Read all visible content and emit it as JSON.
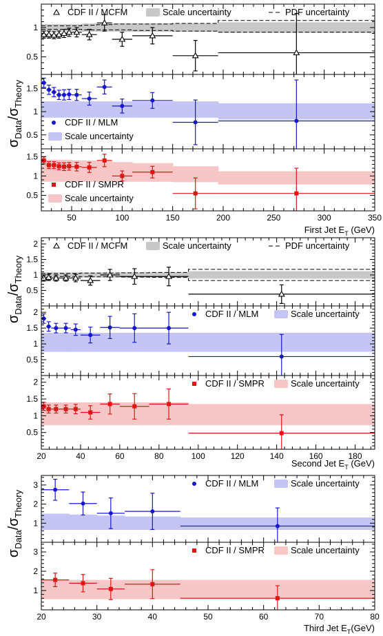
{
  "figure": {
    "ylabel_main": "σ",
    "ylabel_sub1": "Data",
    "ylabel_sep": "/σ",
    "ylabel_sub2": "Theory",
    "colors": {
      "mcfm": "#000000",
      "mlm": "#1515d0",
      "smpr": "#e11414",
      "scale_mcfm": "#c8c8c8",
      "scale_mlm": "#c4c4f5",
      "scale_smpr": "#f7c6c6"
    }
  },
  "chart_data": [
    {
      "id": "first-jet",
      "type": "scatter",
      "xlabel_main": "First Jet E",
      "xlabel_sub": "T",
      "xlabel_unit": " (GeV)",
      "xlim": [
        20,
        350
      ],
      "xticks": [
        50,
        100,
        150,
        200,
        250,
        300,
        350
      ],
      "bins": [
        [
          20,
          25
        ],
        [
          25,
          30
        ],
        [
          30,
          35
        ],
        [
          35,
          40
        ],
        [
          40,
          45
        ],
        [
          45,
          50
        ],
        [
          50,
          60
        ],
        [
          60,
          75
        ],
        [
          75,
          90
        ],
        [
          90,
          110
        ],
        [
          110,
          150
        ],
        [
          150,
          195
        ],
        [
          195,
          350
        ]
      ],
      "x": [
        22.5,
        27.5,
        32.5,
        37.5,
        42.5,
        47.5,
        55,
        67.5,
        82.5,
        100,
        130,
        172.5,
        272.5
      ],
      "panels": [
        {
          "id": "mcfm",
          "ylim": [
            0.2,
            1.4
          ],
          "yticks": [
            0.5,
            1
          ],
          "legend": [
            {
              "marker": "triangle",
              "label": "CDF II / MCFM"
            },
            {
              "marker": "band-grey",
              "label": "Scale uncertainty"
            },
            {
              "marker": "dash",
              "label": "PDF uncertainty"
            }
          ],
          "legend_layout": "top-row",
          "series_name": "CDF II / MCFM",
          "marker": "triangle",
          "color_key": "mcfm",
          "y": [
            0.88,
            0.88,
            0.87,
            0.88,
            0.9,
            0.92,
            0.92,
            0.88,
            1.08,
            0.8,
            0.86,
            0.52,
            0.57
          ],
          "yerr": [
            0.06,
            0.06,
            0.06,
            0.06,
            0.07,
            0.07,
            0.08,
            0.09,
            0.14,
            0.12,
            0.14,
            0.26,
            0.67
          ],
          "band_color_key": "scale_mcfm",
          "band": [
            [
              0.94,
              1.06
            ],
            [
              0.94,
              1.06
            ],
            [
              0.94,
              1.06
            ],
            [
              0.94,
              1.06
            ],
            [
              0.94,
              1.06
            ],
            [
              0.94,
              1.06
            ],
            [
              0.94,
              1.06
            ],
            [
              0.93,
              1.07
            ],
            [
              0.93,
              1.07
            ],
            [
              0.93,
              1.07
            ],
            [
              0.93,
              1.07
            ],
            [
              0.93,
              1.07
            ],
            [
              0.91,
              1.09
            ]
          ],
          "pdf_lo": [
            0.97,
            0.97,
            0.97,
            0.97,
            0.97,
            0.97,
            0.97,
            0.96,
            0.96,
            0.96,
            0.95,
            0.94,
            0.92
          ],
          "pdf_hi": [
            1.03,
            1.03,
            1.03,
            1.03,
            1.03,
            1.03,
            1.03,
            1.04,
            1.05,
            1.06,
            1.06,
            1.07,
            1.12
          ]
        },
        {
          "id": "mlm",
          "ylim": [
            0.2,
            1.8
          ],
          "yticks": [
            0.5,
            1,
            1.5
          ],
          "legend": [
            {
              "marker": "dot",
              "label": "CDF II / MLM"
            },
            {
              "marker": "band",
              "label": "Scale uncertainty"
            }
          ],
          "legend_layout": "lower-left",
          "series_name": "CDF II / MLM",
          "marker": "dot",
          "color_key": "mlm",
          "y": [
            1.62,
            1.47,
            1.42,
            1.36,
            1.36,
            1.37,
            1.36,
            1.28,
            1.53,
            1.12,
            1.24,
            0.77,
            0.8
          ],
          "yerr": [
            0.1,
            0.1,
            0.1,
            0.1,
            0.11,
            0.11,
            0.12,
            0.14,
            0.15,
            0.15,
            0.17,
            0.48,
            0.88
          ],
          "band_color_key": "scale_mlm",
          "band": [
            [
              0.87,
              1.22
            ],
            [
              0.87,
              1.22
            ],
            [
              0.87,
              1.22
            ],
            [
              0.87,
              1.22
            ],
            [
              0.87,
              1.22
            ],
            [
              0.87,
              1.22
            ],
            [
              0.87,
              1.22
            ],
            [
              0.87,
              1.22
            ],
            [
              0.87,
              1.22
            ],
            [
              0.87,
              1.22
            ],
            [
              0.87,
              1.22
            ],
            [
              0.87,
              1.22
            ],
            [
              0.83,
              1.18
            ]
          ]
        },
        {
          "id": "smpr",
          "ylim": [
            0.1,
            1.7
          ],
          "yticks": [
            0.5,
            1,
            1.5
          ],
          "legend": [
            {
              "marker": "square",
              "label": "CDF II / SMPR"
            },
            {
              "marker": "band",
              "label": "Scale uncertainty"
            }
          ],
          "legend_layout": "lower-left",
          "series_name": "CDF II / SMPR",
          "marker": "square",
          "color_key": "smpr",
          "y": [
            1.4,
            1.28,
            1.28,
            1.25,
            1.24,
            1.25,
            1.24,
            1.22,
            1.4,
            1.0,
            1.1,
            0.55,
            0.55
          ],
          "yerr": [
            0.09,
            0.09,
            0.09,
            0.09,
            0.1,
            0.1,
            0.11,
            0.13,
            0.16,
            0.13,
            0.15,
            0.4,
            0.65
          ],
          "band_color_key": "scale_smpr",
          "band": [
            [
              0.85,
              1.42
            ],
            [
              0.85,
              1.42
            ],
            [
              0.85,
              1.42
            ],
            [
              0.85,
              1.42
            ],
            [
              0.85,
              1.42
            ],
            [
              0.85,
              1.42
            ],
            [
              0.85,
              1.4
            ],
            [
              0.85,
              1.4
            ],
            [
              0.85,
              1.38
            ],
            [
              0.85,
              1.36
            ],
            [
              0.85,
              1.33
            ],
            [
              0.84,
              1.25
            ],
            [
              0.78,
              1.12
            ]
          ]
        }
      ]
    },
    {
      "id": "second-jet",
      "type": "scatter",
      "xlabel_main": "Second Jet E",
      "xlabel_sub": "T",
      "xlabel_unit": " (GeV)",
      "xlim": [
        20,
        190
      ],
      "xticks": [
        20,
        40,
        60,
        80,
        100,
        120,
        140,
        160,
        180
      ],
      "bins": [
        [
          20,
          22.5
        ],
        [
          22.5,
          25
        ],
        [
          25,
          30
        ],
        [
          30,
          35
        ],
        [
          35,
          40
        ],
        [
          40,
          50
        ],
        [
          50,
          60
        ],
        [
          60,
          75
        ],
        [
          75,
          95
        ],
        [
          95,
          190
        ]
      ],
      "x": [
        21.25,
        23.75,
        27.5,
        32.5,
        37.5,
        45,
        55,
        67.5,
        85,
        142.5
      ],
      "panels": [
        {
          "id": "mcfm",
          "ylim": [
            0,
            2.2
          ],
          "yticks": [
            0.5,
            1,
            1.5,
            2
          ],
          "legend": [
            {
              "marker": "triangle",
              "label": "CDF II / MCFM"
            },
            {
              "marker": "band-grey",
              "label": "Scale uncertainty"
            },
            {
              "marker": "dash",
              "label": "PDF uncertainty"
            }
          ],
          "legend_layout": "top-row",
          "series_name": "CDF II / MCFM",
          "marker": "triangle",
          "color_key": "mcfm",
          "y": [
            0.9,
            0.92,
            0.9,
            0.9,
            0.9,
            0.82,
            1.0,
            0.95,
            0.95,
            0.38
          ],
          "yerr": [
            0.1,
            0.1,
            0.1,
            0.1,
            0.12,
            0.15,
            0.18,
            0.25,
            0.3,
            0.3
          ],
          "band_color_key": "scale_mcfm",
          "band": [
            [
              0.92,
              1.08
            ],
            [
              0.92,
              1.08
            ],
            [
              0.92,
              1.08
            ],
            [
              0.92,
              1.08
            ],
            [
              0.92,
              1.08
            ],
            [
              0.92,
              1.08
            ],
            [
              0.92,
              1.08
            ],
            [
              0.92,
              1.08
            ],
            [
              0.92,
              1.08
            ],
            [
              0.88,
              1.12
            ]
          ],
          "pdf_lo": [
            0.95,
            0.95,
            0.95,
            0.95,
            0.95,
            0.94,
            0.94,
            0.93,
            0.92,
            0.82
          ],
          "pdf_hi": [
            1.05,
            1.05,
            1.05,
            1.05,
            1.05,
            1.06,
            1.06,
            1.07,
            1.08,
            1.18
          ]
        },
        {
          "id": "mlm",
          "ylim": [
            0,
            2.2
          ],
          "yticks": [
            0.5,
            1,
            1.5,
            2
          ],
          "legend": [
            {
              "marker": "dot",
              "label": "CDF II / MLM"
            },
            {
              "marker": "band",
              "label": "Scale uncertainty"
            }
          ],
          "legend_layout": "top-row",
          "series_name": "CDF II / MLM",
          "marker": "dot",
          "color_key": "mlm",
          "y": [
            1.8,
            1.55,
            1.5,
            1.5,
            1.45,
            1.28,
            1.52,
            1.5,
            1.5,
            0.6
          ],
          "yerr": [
            0.15,
            0.15,
            0.15,
            0.15,
            0.18,
            0.25,
            0.35,
            0.45,
            0.5,
            0.7
          ],
          "band_color_key": "scale_mlm",
          "band": [
            [
              0.75,
              1.35
            ],
            [
              0.75,
              1.35
            ],
            [
              0.75,
              1.35
            ],
            [
              0.75,
              1.35
            ],
            [
              0.75,
              1.35
            ],
            [
              0.75,
              1.35
            ],
            [
              0.75,
              1.35
            ],
            [
              0.75,
              1.35
            ],
            [
              0.75,
              1.35
            ],
            [
              0.75,
              1.35
            ]
          ]
        },
        {
          "id": "smpr",
          "ylim": [
            0,
            2.2
          ],
          "yticks": [
            0.5,
            1,
            1.5,
            2
          ],
          "legend": [
            {
              "marker": "square",
              "label": "CDF II / SMPR"
            },
            {
              "marker": "band",
              "label": "Scale uncertainty"
            }
          ],
          "legend_layout": "top-row",
          "series_name": "CDF II / SMPR",
          "marker": "square",
          "color_key": "smpr",
          "y": [
            1.28,
            1.2,
            1.2,
            1.2,
            1.2,
            1.1,
            1.35,
            1.28,
            1.35,
            0.48
          ],
          "yerr": [
            0.12,
            0.12,
            0.12,
            0.12,
            0.14,
            0.2,
            0.3,
            0.38,
            0.45,
            0.55
          ],
          "band_color_key": "scale_smpr",
          "band": [
            [
              0.72,
              1.4
            ],
            [
              0.72,
              1.4
            ],
            [
              0.72,
              1.4
            ],
            [
              0.72,
              1.4
            ],
            [
              0.72,
              1.4
            ],
            [
              0.72,
              1.4
            ],
            [
              0.72,
              1.4
            ],
            [
              0.72,
              1.4
            ],
            [
              0.72,
              1.4
            ],
            [
              0.72,
              1.35
            ]
          ]
        }
      ]
    },
    {
      "id": "third-jet",
      "type": "scatter",
      "xlabel_main": "Third Jet E",
      "xlabel_sub": "T",
      "xlabel_unit": "(GeV)",
      "xlim": [
        20,
        80
      ],
      "xticks": [
        20,
        30,
        40,
        50,
        60,
        70,
        80
      ],
      "bins": [
        [
          20,
          25
        ],
        [
          25,
          30
        ],
        [
          30,
          35
        ],
        [
          35,
          45
        ],
        [
          45,
          80
        ]
      ],
      "x": [
        22.5,
        27.5,
        32.5,
        40,
        62.5
      ],
      "panels": [
        {
          "id": "mlm",
          "ylim": [
            0,
            3.5
          ],
          "yticks": [
            1,
            2,
            3
          ],
          "legend": [
            {
              "marker": "dot",
              "label": "CDF II / MLM"
            },
            {
              "marker": "band",
              "label": "Scale uncertainty"
            }
          ],
          "legend_layout": "top-row",
          "series_name": "CDF II / MLM",
          "marker": "dot",
          "color_key": "mlm",
          "y": [
            2.75,
            2.03,
            1.52,
            1.62,
            0.85
          ],
          "yerr": [
            0.55,
            0.6,
            0.8,
            0.95,
            0.95
          ],
          "band_color_key": "scale_mlm",
          "band": [
            [
              0.65,
              1.5
            ],
            [
              0.65,
              1.45
            ],
            [
              0.65,
              1.4
            ],
            [
              0.65,
              1.35
            ],
            [
              0.65,
              1.3
            ]
          ]
        },
        {
          "id": "smpr",
          "ylim": [
            0,
            3.5
          ],
          "yticks": [
            1,
            2,
            3
          ],
          "legend": [
            {
              "marker": "square",
              "label": "CDF II / SMPR"
            },
            {
              "marker": "band",
              "label": "Scale uncertainty"
            }
          ],
          "legend_layout": "top-row",
          "series_name": "CDF II / SMPR",
          "marker": "square",
          "color_key": "smpr",
          "y": [
            1.55,
            1.38,
            1.08,
            1.33,
            0.6
          ],
          "yerr": [
            0.35,
            0.45,
            0.55,
            0.75,
            0.65
          ],
          "band_color_key": "scale_smpr",
          "band": [
            [
              0.55,
              1.55
            ],
            [
              0.55,
              1.55
            ],
            [
              0.55,
              1.55
            ],
            [
              0.55,
              1.55
            ],
            [
              0.55,
              1.55
            ]
          ]
        }
      ]
    }
  ]
}
